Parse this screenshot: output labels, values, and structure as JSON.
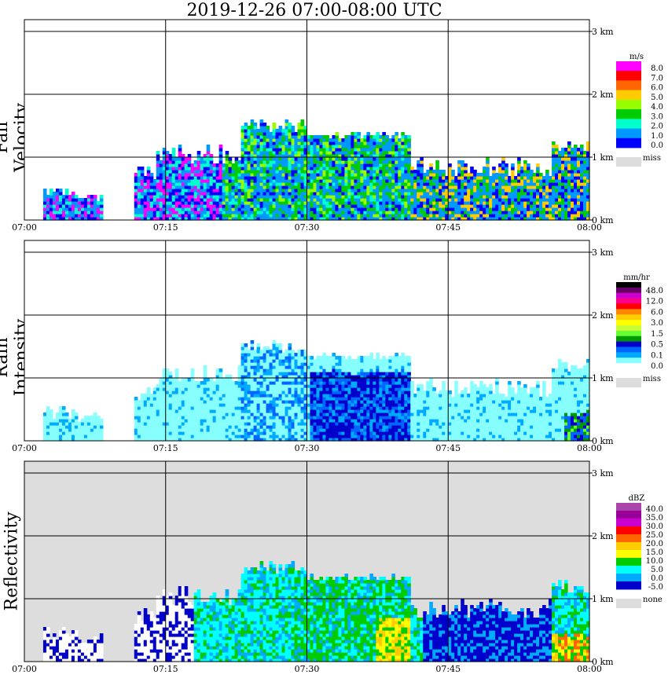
{
  "title": "2019-12-26   07:00-08:00 UTC",
  "chart_data": [
    {
      "type": "heatmap",
      "name": "Fall Velocity",
      "ylabel": "Fall Velocity",
      "x_ticks": [
        "07:00",
        "07:15",
        "07:30",
        "07:45",
        "08:00"
      ],
      "y_ticks": [
        "0 km",
        "1 km",
        "2 km",
        "3 km"
      ],
      "xlim": [
        "07:00",
        "08:00"
      ],
      "ylim_km": [
        0,
        3
      ],
      "grid": true,
      "colorbar": {
        "unit": "m/s",
        "levels": [
          "8.0",
          "7.0",
          "6.0",
          "5.0",
          "4.0",
          "3.0",
          "2.0",
          "1.0",
          "0.0"
        ],
        "colors": [
          "#ff00ff",
          "#ff0000",
          "#ff6600",
          "#ffcc00",
          "#99ff00",
          "#00cc00",
          "#00ffcc",
          "#0099ff",
          "#0000ff"
        ],
        "missing_label": "miss",
        "missing_color": "#dddddd"
      }
    },
    {
      "type": "heatmap",
      "name": "Rain Intensity",
      "ylabel": "Rain Intensity",
      "x_ticks": [
        "07:00",
        "07:15",
        "07:30",
        "07:45",
        "08:00"
      ],
      "y_ticks": [
        "0 km",
        "1 km",
        "2 km",
        "3 km"
      ],
      "xlim": [
        "07:00",
        "08:00"
      ],
      "ylim_km": [
        0,
        3
      ],
      "grid": true,
      "colorbar": {
        "unit": "mm/hr",
        "levels": [
          "48.0",
          "12.0",
          "6.0",
          "3.0",
          "1.5",
          "0.5",
          "0.1",
          "0.0"
        ],
        "colors": [
          "#000000",
          "#660066",
          "#cc00cc",
          "#ff0088",
          "#ff0000",
          "#ff8800",
          "#ffcc00",
          "#ffff00",
          "#ccff33",
          "#66ff33",
          "#009900",
          "#0000cc",
          "#0066ff",
          "#00aaff",
          "#88ffff",
          "#ffffff"
        ],
        "missing_label": "miss",
        "missing_color": "#dddddd"
      }
    },
    {
      "type": "heatmap",
      "name": "Reflectivity",
      "ylabel": "Reflectivity",
      "x_ticks": [
        "07:00",
        "07:15",
        "07:30",
        "07:45",
        "08:00"
      ],
      "y_ticks": [
        "0 km",
        "1 km",
        "2 km",
        "3 km"
      ],
      "xlim": [
        "07:00",
        "08:00"
      ],
      "ylim_km": [
        0,
        3
      ],
      "grid": true,
      "colorbar": {
        "unit": "dBZ",
        "levels": [
          "40.0",
          "35.0",
          "30.0",
          "25.0",
          "20.0",
          "15.0",
          "10.0",
          "5.0",
          "0.0",
          "-5.0"
        ],
        "colors": [
          "#aa44aa",
          "#990099",
          "#cc00cc",
          "#ff0000",
          "#ff6600",
          "#ffcc00",
          "#ffff00",
          "#00cc00",
          "#00ffff",
          "#00aaff",
          "#0000cc"
        ],
        "missing_label": "none",
        "missing_color": "#dddddd"
      }
    }
  ]
}
